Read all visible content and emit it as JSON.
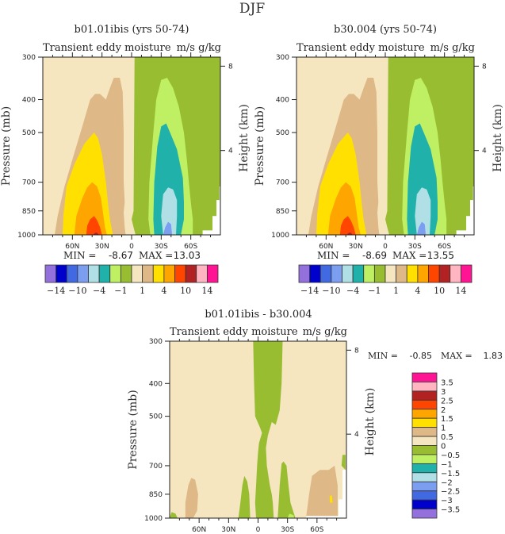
{
  "figure_title": "DJF",
  "colors": {
    "levels16": [
      "#9370DB",
      "#0000CD",
      "#4169E1",
      "#7B9EF0",
      "#B0E0E6",
      "#20B2AA",
      "#BFEF62",
      "#98BD31",
      "#F5E6C0",
      "#DEB887",
      "#FFE000",
      "#FFA500",
      "#FF4500",
      "#B22222",
      "#FFB6C1",
      "#FF1493"
    ]
  },
  "chart_data": [
    {
      "type": "heatmap",
      "subtype": "filled-contour",
      "title": "b01.01ibis (yrs 50-74)",
      "left_subtitle": "Transient eddy moisture",
      "right_subtitle": "m/s g/kg",
      "xlabel": "",
      "ylabel": "Pressure (mb)",
      "ylabel_right": "Height (km)",
      "x_ticks": [
        "60N",
        "30N",
        "0",
        "30S",
        "60S"
      ],
      "x_tick_values": [
        60,
        30,
        0,
        -30,
        -60
      ],
      "xlim": [
        90,
        -90
      ],
      "y_ticks": [
        "300",
        "400",
        "500",
        "700",
        "850",
        "1000"
      ],
      "y_tick_values": [
        300,
        400,
        500,
        700,
        850,
        1000
      ],
      "ylim": [
        1000,
        300
      ],
      "y_scale": "log",
      "y_right_ticks": [
        "8",
        "4"
      ],
      "y_right_tick_values": [
        8,
        4
      ],
      "min_label": "MIN =",
      "min_value": "-8.67",
      "max_label": "MAX =",
      "max_value": "13.03",
      "colorbar_orientation": "horizontal",
      "colorbar_labels": [
        "-14",
        "-10",
        "-4",
        "-1",
        "1",
        "4",
        "10",
        "14"
      ],
      "levels": [
        -14,
        -12,
        -10,
        -8,
        -4,
        -2,
        -1,
        0,
        1,
        2,
        4,
        8,
        10,
        12,
        14
      ],
      "features": [
        {
          "level_color_index": 8,
          "region": "NH background, 90N-3S",
          "value_range": [
            0,
            1
          ]
        },
        {
          "level_color_index": 7,
          "region": "SH background, 3S-90S",
          "value_range": [
            -1,
            0
          ]
        },
        {
          "level_color_index": 9,
          "region": "NH lobe 75N-10N up to ~350mb",
          "value_range": [
            1,
            2
          ]
        },
        {
          "level_color_index": 10,
          "region": "NH core 70N-20N up to ~510mb",
          "value_range": [
            2,
            4
          ]
        },
        {
          "level_color_index": 11,
          "region": "NH core 55N-25N up to ~690mb",
          "value_range": [
            4,
            8
          ]
        },
        {
          "level_color_index": 12,
          "region": "NH core 45N-25N up to ~880mb",
          "value_range": [
            8,
            10
          ]
        },
        {
          "level_color_index": 13,
          "region": "near 35N, 1000mb",
          "value_range": [
            10,
            14
          ]
        },
        {
          "level_color_index": 6,
          "region": "SH lobe 25S-60S up to ~340mb",
          "value_range": [
            -2,
            -1
          ]
        },
        {
          "level_color_index": 5,
          "region": "SH core 35S-55S up to ~480mb",
          "value_range": [
            -4,
            -2
          ]
        },
        {
          "level_color_index": 4,
          "region": "SH core 40S-55S up to ~720mb",
          "value_range": [
            -8,
            -4
          ]
        },
        {
          "level_color_index": 3,
          "region": "SH core ~45S near 1000mb",
          "value_range": [
            -10,
            -8
          ]
        }
      ]
    },
    {
      "type": "heatmap",
      "subtype": "filled-contour",
      "title": "b30.004 (yrs 50-74)",
      "left_subtitle": "Transient eddy moisture",
      "right_subtitle": "m/s g/kg",
      "xlabel": "",
      "ylabel": "Pressure (mb)",
      "ylabel_right": "Height (km)",
      "x_ticks": [
        "60N",
        "30N",
        "0",
        "30S",
        "60S"
      ],
      "x_tick_values": [
        60,
        30,
        0,
        -30,
        -60
      ],
      "xlim": [
        90,
        -90
      ],
      "y_ticks": [
        "300",
        "400",
        "500",
        "700",
        "850",
        "1000"
      ],
      "y_tick_values": [
        300,
        400,
        500,
        700,
        850,
        1000
      ],
      "ylim": [
        1000,
        300
      ],
      "y_scale": "log",
      "y_right_ticks": [
        "8",
        "4"
      ],
      "y_right_tick_values": [
        8,
        4
      ],
      "min_label": "MIN =",
      "min_value": "-8.69",
      "max_label": "MAX =",
      "max_value": "13.55",
      "colorbar_orientation": "horizontal",
      "colorbar_labels": [
        "-14",
        "-10",
        "-4",
        "-1",
        "1",
        "4",
        "10",
        "14"
      ],
      "levels": [
        -14,
        -12,
        -10,
        -8,
        -4,
        -2,
        -1,
        0,
        1,
        2,
        4,
        8,
        10,
        12,
        14
      ],
      "features": [
        {
          "level_color_index": 8,
          "region": "NH background, 90N-3S",
          "value_range": [
            0,
            1
          ]
        },
        {
          "level_color_index": 7,
          "region": "SH background, 3S-90S",
          "value_range": [
            -1,
            0
          ]
        },
        {
          "level_color_index": 9,
          "region": "NH lobe 80N-10N up to ~360mb",
          "value_range": [
            1,
            2
          ]
        },
        {
          "level_color_index": 10,
          "region": "NH core 65N-22N up to ~505mb",
          "value_range": [
            2,
            4
          ]
        },
        {
          "level_color_index": 11,
          "region": "NH core 50N-25N up to ~690mb",
          "value_range": [
            4,
            8
          ]
        },
        {
          "level_color_index": 12,
          "region": "NH core 45N-27N up to ~880mb",
          "value_range": [
            8,
            10
          ]
        },
        {
          "level_color_index": 13,
          "region": "near 35N, 1000mb",
          "value_range": [
            10,
            14
          ]
        },
        {
          "level_color_index": 6,
          "region": "SH lobe 25S-60S up to ~350mb",
          "value_range": [
            -2,
            -1
          ]
        },
        {
          "level_color_index": 5,
          "region": "SH core 33S-55S up to ~470mb",
          "value_range": [
            -4,
            -2
          ]
        },
        {
          "level_color_index": 4,
          "region": "SH core 40S-55S up to ~720mb",
          "value_range": [
            -8,
            -4
          ]
        },
        {
          "level_color_index": 3,
          "region": "SH core ~45S near 1000mb",
          "value_range": [
            -10,
            -8
          ]
        }
      ]
    },
    {
      "type": "heatmap",
      "subtype": "filled-contour",
      "title": "b01.01ibis - b30.004",
      "left_subtitle": "Transient eddy moisture",
      "right_subtitle": "m/s g/kg",
      "xlabel": "",
      "ylabel": "Pressure (mb)",
      "ylabel_right": "Height (km)",
      "x_ticks": [
        "60N",
        "30N",
        "0",
        "30S",
        "60S"
      ],
      "x_tick_values": [
        60,
        30,
        0,
        -30,
        -60
      ],
      "xlim": [
        90,
        -90
      ],
      "y_ticks": [
        "300",
        "400",
        "500",
        "700",
        "850",
        "1000"
      ],
      "y_tick_values": [
        300,
        400,
        500,
        700,
        850,
        1000
      ],
      "ylim": [
        1000,
        300
      ],
      "y_scale": "log",
      "y_right_ticks": [
        "8",
        "4"
      ],
      "y_right_tick_values": [
        8,
        4
      ],
      "min_label": "MIN =",
      "min_value": "-0.85",
      "max_label": "MAX =",
      "max_value": "1.83",
      "colorbar_orientation": "vertical",
      "colorbar_labels": [
        "3.5",
        "3",
        "2.5",
        "2",
        "1.5",
        "1",
        "0.5",
        "0",
        "-0.5",
        "-1",
        "-1.5",
        "-2",
        "-2.5",
        "-3",
        "-3.5"
      ],
      "levels": [
        -3.5,
        -3,
        -2.5,
        -2,
        -1.5,
        -1,
        -0.5,
        0,
        0.5,
        1,
        1.5,
        2,
        2.5,
        3,
        3.5
      ],
      "features": [
        {
          "level_color_index": 8,
          "region": "background",
          "value_range": [
            0,
            0.5
          ]
        },
        {
          "level_color_index": 7,
          "region": "equatorial column 5N-15S from 300mb to 1000mb",
          "value_range": [
            -0.5,
            0
          ]
        },
        {
          "level_color_index": 7,
          "region": "lower-level patch 20N-10N",
          "value_range": [
            -0.5,
            0
          ]
        },
        {
          "level_color_index": 7,
          "region": "lower-level patch 20S-40S",
          "value_range": [
            -0.5,
            0
          ]
        },
        {
          "level_color_index": 9,
          "region": "patch 60N-70N below 770mb",
          "value_range": [
            0.5,
            1
          ]
        },
        {
          "level_color_index": 9,
          "region": "patch 55S-80S below 700mb",
          "value_range": [
            0.5,
            1
          ]
        },
        {
          "level_color_index": 10,
          "region": "spot ~75S near 880mb",
          "value_range": [
            1,
            1.5
          ]
        }
      ]
    }
  ]
}
